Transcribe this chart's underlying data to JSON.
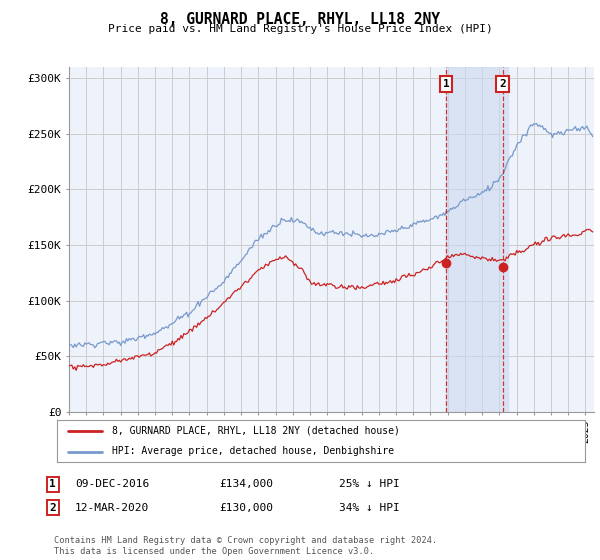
{
  "title": "8, GURNARD PLACE, RHYL, LL18 2NY",
  "subtitle": "Price paid vs. HM Land Registry's House Price Index (HPI)",
  "background_color": "#ffffff",
  "plot_background": "#eef2fa",
  "grid_color": "#cccccc",
  "hpi_color": "#7799cc",
  "price_color": "#cc2222",
  "marker1_date_num": 2016.92,
  "marker2_date_num": 2020.19,
  "marker1_price": 134000,
  "marker2_price": 130000,
  "marker1_label": "1",
  "marker2_label": "2",
  "marker1_date_str": "09-DEC-2016",
  "marker2_date_str": "12-MAR-2020",
  "marker1_pct": "25% ↓ HPI",
  "marker2_pct": "34% ↓ HPI",
  "legend_line1": "8, GURNARD PLACE, RHYL, LL18 2NY (detached house)",
  "legend_line2": "HPI: Average price, detached house, Denbighshire",
  "footer": "Contains HM Land Registry data © Crown copyright and database right 2024.\nThis data is licensed under the Open Government Licence v3.0.",
  "ylim": [
    0,
    310000
  ],
  "xlim_start": 1995.0,
  "xlim_end": 2025.5,
  "yticks": [
    0,
    50000,
    100000,
    150000,
    200000,
    250000,
    300000
  ],
  "ytick_labels": [
    "£0",
    "£50K",
    "£100K",
    "£150K",
    "£200K",
    "£250K",
    "£300K"
  ],
  "shade_color": "#c8d8f0",
  "shade_alpha": 0.55
}
